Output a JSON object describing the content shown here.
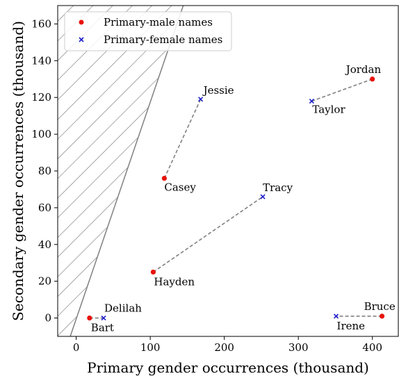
{
  "chart_data": {
    "type": "scatter",
    "xlabel": "Primary gender occurrences (thousand)",
    "ylabel": "Secondary gender occurrences (thousand)",
    "xlim": [
      -25,
      435
    ],
    "ylim": [
      -10,
      170
    ],
    "xticks": [
      0,
      100,
      200,
      300,
      400
    ],
    "yticks": [
      0,
      20,
      40,
      60,
      80,
      100,
      120,
      140,
      160
    ],
    "grid": false,
    "legend_position": "top-left",
    "series": [
      {
        "name": "Primary-male names",
        "marker": "circle",
        "color": "#e8120c",
        "points": [
          {
            "label": "Jordan",
            "x": 400,
            "y": 130
          },
          {
            "label": "Casey",
            "x": 119,
            "y": 76
          },
          {
            "label": "Hayden",
            "x": 104,
            "y": 25
          },
          {
            "label": "Bart",
            "x": 18,
            "y": 0
          },
          {
            "label": "Bruce",
            "x": 413,
            "y": 1
          }
        ]
      },
      {
        "name": "Primary-female names",
        "marker": "x",
        "color": "#1a1acc",
        "points": [
          {
            "label": "Taylor",
            "x": 318,
            "y": 118
          },
          {
            "label": "Jessie",
            "x": 168,
            "y": 119
          },
          {
            "label": "Tracy",
            "x": 252,
            "y": 66
          },
          {
            "label": "Delilah",
            "x": 37,
            "y": 0
          },
          {
            "label": "Irene",
            "x": 351,
            "y": 1
          }
        ]
      }
    ],
    "pairs": [
      [
        "Jordan",
        "Taylor"
      ],
      [
        "Casey",
        "Jessie"
      ],
      [
        "Hayden",
        "Tracy"
      ],
      [
        "Bart",
        "Delilah"
      ],
      [
        "Bruce",
        "Irene"
      ]
    ],
    "hatched_region": {
      "description_boundary_line": {
        "from": [
          -25,
          -30
        ],
        "to": [
          170,
          200
        ]
      }
    }
  }
}
